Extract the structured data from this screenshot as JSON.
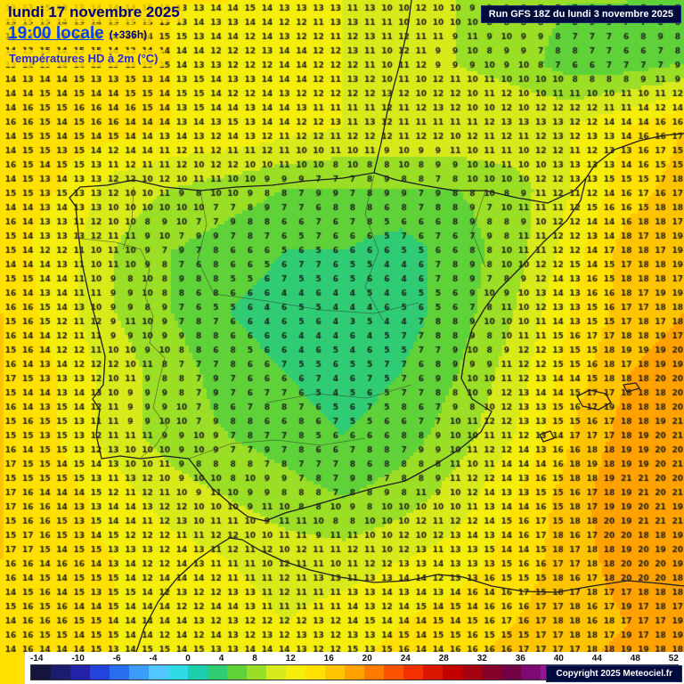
{
  "header": {
    "date": "lundi 17 novembre 2025",
    "time": "19:00 locale",
    "offset": "(+336h)",
    "variable": "Températures HD à 2m (°C)"
  },
  "run_info": "Run GFS 18Z du lundi 3 novembre 2025",
  "copyright": "Copyright 2025 Meteociel.fr",
  "colors": {
    "header_date": "#000080",
    "header_time": "#0040ff",
    "header_variable": "#2a2ae0",
    "highlight_bg": "#ffdf00",
    "info_box_bg": "#000a3c",
    "info_box_text": "#ffffff",
    "grid_number_text": "#1c1c1c"
  },
  "scale": {
    "unit": "°C",
    "min": -14,
    "max": 52,
    "step": 2,
    "labels": [
      "-14",
      "-10",
      "-6",
      "-4",
      "0",
      "4",
      "8",
      "12",
      "16",
      "20",
      "24",
      "28",
      "32",
      "36",
      "40",
      "44",
      "48",
      "52"
    ],
    "colors": [
      "#14143c",
      "#1c1c6e",
      "#2222a8",
      "#2244dc",
      "#2a6ef0",
      "#3c9cfa",
      "#50c8ff",
      "#2edbe6",
      "#1ecfae",
      "#30cc74",
      "#5ed238",
      "#9ade26",
      "#d8ea1a",
      "#f5ee0a",
      "#ffe000",
      "#ffc400",
      "#ffa200",
      "#ff7a00",
      "#ff5200",
      "#f43000",
      "#dc1600",
      "#c20000",
      "#a40010",
      "#86002a",
      "#740046",
      "#7c0a72",
      "#941496",
      "#b41eb4",
      "#cc32cc",
      "#e04ce0",
      "#ee6eee",
      "#f794f7",
      "#fdbafd"
    ]
  },
  "map": {
    "region": "Iberian Peninsula",
    "variable": "2m temperature",
    "unit": "°C",
    "field_cols": 13,
    "field_rows": 12,
    "field": [
      [
        14,
        14,
        14,
        14,
        14,
        13,
        12,
        11,
        10,
        9,
        8,
        8,
        7
      ],
      [
        14,
        14,
        14,
        14,
        13,
        13,
        12,
        11,
        10,
        9,
        7,
        7,
        8
      ],
      [
        15,
        15,
        15,
        14,
        14,
        13,
        12,
        12,
        12,
        12,
        12,
        14,
        16
      ],
      [
        15,
        14,
        11,
        10,
        9,
        8,
        8,
        8,
        8,
        9,
        12,
        15,
        17
      ],
      [
        15,
        13,
        10,
        8,
        7,
        6,
        6,
        5,
        7,
        9,
        13,
        17,
        18
      ],
      [
        16,
        13,
        10,
        8,
        6,
        5,
        4,
        5,
        7,
        10,
        14,
        17,
        18
      ],
      [
        16,
        14,
        11,
        9,
        7,
        6,
        5,
        6,
        8,
        11,
        15,
        18,
        19
      ],
      [
        16,
        14,
        11,
        9,
        8,
        7,
        6,
        7,
        9,
        12,
        16,
        19,
        20
      ],
      [
        16,
        15,
        13,
        11,
        10,
        9,
        8,
        9,
        11,
        14,
        17,
        20,
        20
      ],
      [
        16,
        15,
        14,
        13,
        12,
        11,
        11,
        12,
        13,
        15,
        17,
        19,
        19
      ],
      [
        15,
        15,
        14,
        13,
        13,
        12,
        13,
        14,
        15,
        16,
        17,
        18,
        18
      ],
      [
        15,
        15,
        14,
        14,
        15,
        14,
        14,
        15,
        16,
        17,
        18,
        19,
        19
      ]
    ]
  }
}
